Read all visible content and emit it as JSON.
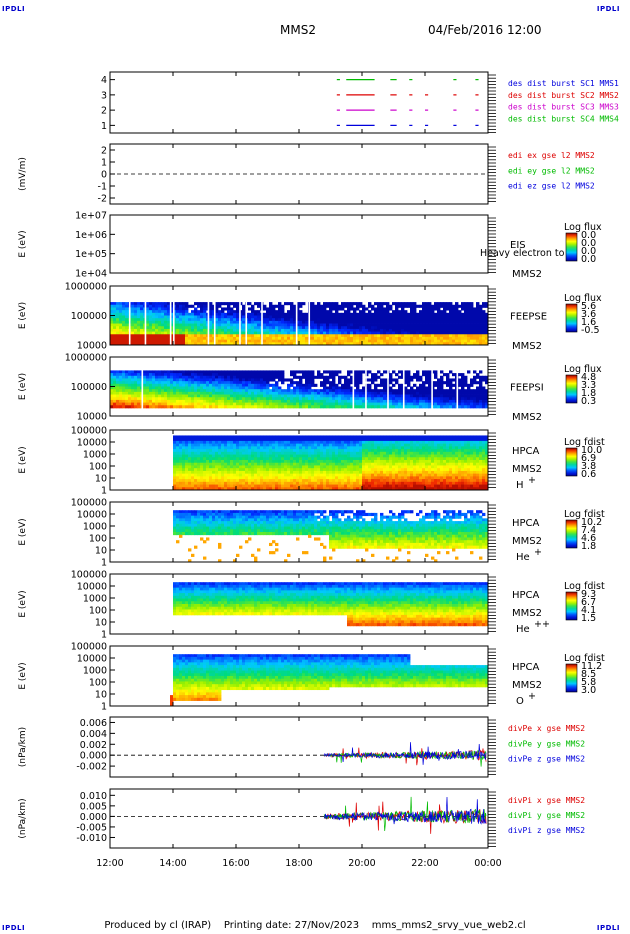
{
  "header": {
    "corner_text": "IPDLI",
    "spacecraft": "MMS2",
    "datetime": "04/Feb/2016 12:00"
  },
  "footer": {
    "produced_by": "Produced by cl (IRAP)",
    "printing_date": "Printing date: 27/Nov/2023",
    "filename": "mms_mms2_srvy_vue_web2.cl"
  },
  "x_axis": {
    "ticks": [
      "12:00",
      "14:00",
      "16:00",
      "18:00",
      "20:00",
      "22:00",
      "00:00"
    ],
    "range_hours": [
      12,
      24
    ]
  },
  "colors": {
    "sc1": "#0000dd",
    "sc2": "#dd0000",
    "sc3": "#cc00cc",
    "sc4": "#00bb00"
  },
  "chart_data": [
    {
      "type": "line",
      "id": "burst",
      "ylim": [
        0.5,
        4.5
      ],
      "yticks": [
        "1",
        "2",
        "3",
        "4"
      ],
      "series": [
        {
          "name": "des dist burst SC1 MMS1",
          "color": "#0000dd",
          "level": 1,
          "segments": [
            [
              19.2,
              19.3
            ],
            [
              19.5,
              20.4
            ],
            [
              20.9,
              21.1
            ],
            [
              21.5,
              21.6
            ],
            [
              22.0,
              22.1
            ],
            [
              22.9,
              23.0
            ],
            [
              23.6,
              23.7
            ]
          ]
        },
        {
          "name": "des dist burst SC2 MMS2",
          "color": "#dd0000",
          "level": 3,
          "segments": [
            [
              19.2,
              19.3
            ],
            [
              19.5,
              20.4
            ],
            [
              20.9,
              21.1
            ],
            [
              21.5,
              21.6
            ],
            [
              22.0,
              22.1
            ],
            [
              22.9,
              23.0
            ],
            [
              23.6,
              23.7
            ]
          ]
        },
        {
          "name": "des dist burst SC3 MMS3",
          "color": "#cc00cc",
          "level": 2,
          "segments": [
            [
              19.2,
              19.3
            ],
            [
              19.5,
              20.4
            ],
            [
              20.9,
              21.1
            ],
            [
              21.5,
              21.6
            ],
            [
              22.0,
              22.1
            ],
            [
              22.9,
              23.0
            ],
            [
              23.6,
              23.7
            ]
          ]
        },
        {
          "name": "des dist burst SC4 MMS4",
          "color": "#00bb00",
          "level": 4,
          "segments": [
            [
              19.2,
              19.3
            ],
            [
              19.5,
              20.4
            ],
            [
              20.9,
              21.1
            ],
            [
              21.5,
              21.6
            ],
            [
              22.9,
              23.0
            ],
            [
              23.6,
              23.7
            ]
          ]
        }
      ]
    },
    {
      "type": "line",
      "id": "edi",
      "ylabel": "(mV/m)",
      "ylim": [
        -2.5,
        2.5
      ],
      "yticks": [
        "-2",
        "-1",
        "0",
        "1",
        "2"
      ],
      "series": [
        {
          "name": "edi ex gse l2 MMS2",
          "color": "#dd0000"
        },
        {
          "name": "edi ey gse l2 MMS2",
          "color": "#00bb00"
        },
        {
          "name": "edi ez gse l2 MMS2",
          "color": "#0000dd"
        }
      ]
    },
    {
      "type": "heatmap",
      "id": "eis",
      "ylabel": "E (eV)",
      "yticks": [
        "1e+04",
        "1e+05",
        "1e+06",
        "1e+07"
      ],
      "instrument": "EIS",
      "spacecraft": "MMS2",
      "legend_title": "Log flux",
      "colorbar": [
        "0.0",
        "0.0",
        "0.0",
        "0.0"
      ],
      "overlay_text": "Heavy electron to"
    },
    {
      "type": "heatmap",
      "id": "feepse",
      "ylabel": "E (eV)",
      "yticks": [
        "10000",
        "100000",
        "1000000"
      ],
      "instrument": "FEEPSE",
      "spacecraft": "MMS2",
      "legend_title": "Log flux",
      "colorbar": [
        "5.6",
        "3.6",
        "1.6",
        "-0.5"
      ]
    },
    {
      "type": "heatmap",
      "id": "feepsi",
      "ylabel": "E (eV)",
      "yticks": [
        "10000",
        "100000",
        "1000000"
      ],
      "instrument": "FEEPSI",
      "spacecraft": "MMS2",
      "legend_title": "Log flux",
      "colorbar": [
        "4.8",
        "3.3",
        "1.8",
        "0.3"
      ]
    },
    {
      "type": "heatmap",
      "id": "hpca-h",
      "ylabel": "E (eV)",
      "yticks": [
        "1",
        "10",
        "100",
        "1000",
        "10000",
        "100000"
      ],
      "instrument": "HPCA",
      "spacecraft": "MMS2",
      "species": "H",
      "charge": "+",
      "legend_title": "Log fdist",
      "colorbar": [
        "10.0",
        "6.9",
        "3.8",
        "0.6"
      ]
    },
    {
      "type": "heatmap",
      "id": "hpca-he",
      "ylabel": "E (eV)",
      "yticks": [
        "1",
        "10",
        "100",
        "1000",
        "10000",
        "100000"
      ],
      "instrument": "HPCA",
      "spacecraft": "MMS2",
      "species": "He",
      "charge": "+",
      "legend_title": "Log fdist",
      "colorbar": [
        "10.2",
        "7.4",
        "4.6",
        "1.8"
      ]
    },
    {
      "type": "heatmap",
      "id": "hpca-hepp",
      "ylabel": "E (eV)",
      "yticks": [
        "1",
        "10",
        "100",
        "1000",
        "10000",
        "100000"
      ],
      "instrument": "HPCA",
      "spacecraft": "MMS2",
      "species": "He",
      "charge": "++",
      "legend_title": "Log fdist",
      "colorbar": [
        "9.3",
        "6.7",
        "4.1",
        "1.5"
      ]
    },
    {
      "type": "heatmap",
      "id": "hpca-o",
      "ylabel": "E (eV)",
      "yticks": [
        "1",
        "10",
        "100",
        "1000",
        "10000",
        "100000"
      ],
      "instrument": "HPCA",
      "spacecraft": "MMS2",
      "species": "O",
      "charge": "+",
      "legend_title": "Log fdist",
      "colorbar": [
        "11.2",
        "8.5",
        "5.8",
        "3.0"
      ]
    },
    {
      "type": "line",
      "id": "divpe",
      "ylabel": "(nPa/km)",
      "ylim": [
        -0.004,
        0.007
      ],
      "yticks": [
        "-0.002",
        "0.000",
        "0.002",
        "0.004",
        "0.006"
      ],
      "series": [
        {
          "name": "divPe x gse MMS2",
          "color": "#dd0000"
        },
        {
          "name": "divPe y gse MMS2",
          "color": "#00bb00"
        },
        {
          "name": "divPe z gse MMS2",
          "color": "#0000dd"
        }
      ]
    },
    {
      "type": "line",
      "id": "divpi",
      "ylabel": "(nPa/km)",
      "ylim": [
        -0.015,
        0.013
      ],
      "yticks": [
        "-0.010",
        "-0.005",
        "0.000",
        "0.005",
        "0.010"
      ],
      "series": [
        {
          "name": "divPi x gse MMS2",
          "color": "#dd0000"
        },
        {
          "name": "divPi y gse MMS2",
          "color": "#00bb00"
        },
        {
          "name": "divPi z gse MMS2",
          "color": "#0000dd"
        }
      ]
    }
  ]
}
